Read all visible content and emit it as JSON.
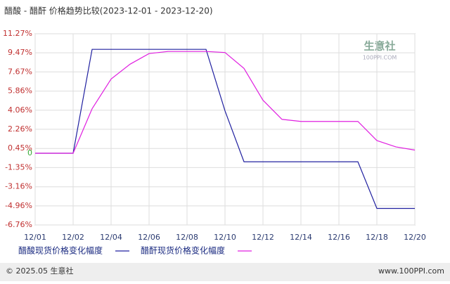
{
  "chart_data": {
    "type": "line",
    "title": "醋酸 - 醋酐 价格趋势比较(2023-12-01 - 2023-12-20)",
    "watermark": {
      "brand": "生意社",
      "site": "100PPI.COM"
    },
    "footer": {
      "left": "© 2025.05 生意社",
      "right": "www.100PPI.com"
    },
    "categories": [
      "12/01",
      null,
      "12/02",
      null,
      "12/04",
      null,
      "12/06",
      null,
      "12/08",
      null,
      "12/10",
      null,
      "12/12",
      null,
      "12/14",
      null,
      "12/16",
      null,
      "12/18",
      null,
      "12/20"
    ],
    "series": [
      {
        "name": "醋酸现货价格变化幅度",
        "color": "#2020a0",
        "values": [
          0,
          0,
          0,
          9.8,
          9.8,
          9.8,
          9.8,
          9.8,
          9.8,
          9.8,
          4.0,
          -0.8,
          -0.8,
          -0.8,
          -0.8,
          -0.8,
          -0.8,
          -0.8,
          -5.2,
          -5.2,
          -5.2
        ]
      },
      {
        "name": "醋酐现货价格变化幅度",
        "color": "#e020e0",
        "values": [
          0,
          0,
          0,
          4.2,
          7.0,
          8.4,
          9.4,
          9.6,
          9.6,
          9.6,
          9.5,
          8.0,
          5.0,
          3.2,
          3.0,
          3.0,
          3.0,
          3.0,
          1.2,
          0.6,
          0.3
        ]
      }
    ],
    "ylim": [
      -6.76,
      11.27
    ],
    "yticks": [
      {
        "value": 11.27,
        "label": "11.27%"
      },
      {
        "value": 9.47,
        "label": "9.47%"
      },
      {
        "value": 7.67,
        "label": "7.67%"
      },
      {
        "value": 5.86,
        "label": "5.86%"
      },
      {
        "value": 4.06,
        "label": "4.06%"
      },
      {
        "value": 2.26,
        "label": "2.26%"
      },
      {
        "value": 0.45,
        "label": "0.45%"
      },
      0,
      {
        "value": -1.35,
        "label": "-1.35%"
      },
      {
        "value": -3.16,
        "label": "-3.16%"
      },
      {
        "value": -4.96,
        "label": "-4.96%"
      },
      {
        "value": -6.76,
        "label": "-6.76%"
      }
    ],
    "grid": true
  }
}
